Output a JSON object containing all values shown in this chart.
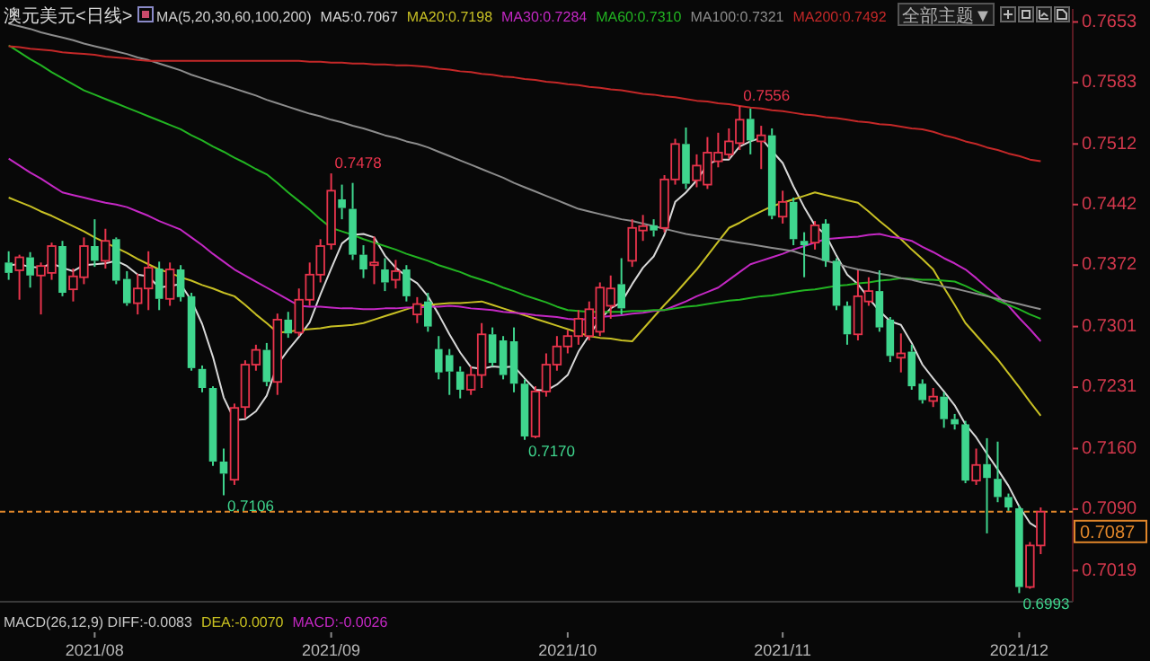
{
  "chart_data": {
    "type": "candlestick",
    "title": "澳元美元<日线>",
    "legend_title": "MA(5,20,30,60,100,200)",
    "legend": "top",
    "categories": [
      null,
      null,
      null,
      null,
      null,
      null,
      null,
      null,
      "2021/08",
      null,
      null,
      null,
      null,
      null,
      null,
      null,
      null,
      null,
      null,
      null,
      null,
      null,
      null,
      null,
      null,
      null,
      null,
      null,
      null,
      null,
      "2021/09",
      null,
      null,
      null,
      null,
      null,
      null,
      null,
      null,
      null,
      null,
      null,
      null,
      null,
      null,
      null,
      null,
      null,
      null,
      null,
      null,
      null,
      "2021/10",
      null,
      null,
      null,
      null,
      null,
      null,
      null,
      null,
      null,
      null,
      null,
      null,
      null,
      null,
      null,
      null,
      null,
      null,
      null,
      "2021/11",
      null,
      null,
      null,
      null,
      null,
      null,
      null,
      null,
      null,
      null,
      null,
      null,
      null,
      null,
      null,
      null,
      null,
      null,
      null,
      null,
      null,
      "2021/12",
      null,
      null
    ],
    "ohlc": [
      [
        0.7375,
        0.7388,
        0.7355,
        0.7363
      ],
      [
        0.7366,
        0.7384,
        0.7332,
        0.7381
      ],
      [
        0.7381,
        0.7387,
        0.7346,
        0.736
      ],
      [
        0.736,
        0.7375,
        0.7315,
        0.7371
      ],
      [
        0.7363,
        0.7398,
        0.7355,
        0.7394
      ],
      [
        0.7394,
        0.74,
        0.7336,
        0.734
      ],
      [
        0.7344,
        0.7368,
        0.733,
        0.7359
      ],
      [
        0.7358,
        0.7404,
        0.735,
        0.7394
      ],
      [
        0.7394,
        0.7425,
        0.737,
        0.7377
      ],
      [
        0.7377,
        0.7414,
        0.7368,
        0.74
      ],
      [
        0.7402,
        0.7404,
        0.735,
        0.7354
      ],
      [
        0.7356,
        0.7365,
        0.7325,
        0.7328
      ],
      [
        0.7328,
        0.7362,
        0.7315,
        0.7345
      ],
      [
        0.7345,
        0.7388,
        0.732,
        0.7369
      ],
      [
        0.7368,
        0.7376,
        0.732,
        0.7333
      ],
      [
        0.7333,
        0.7375,
        0.7325,
        0.7367
      ],
      [
        0.7367,
        0.7372,
        0.733,
        0.7335
      ],
      [
        0.7336,
        0.734,
        0.725,
        0.7253
      ],
      [
        0.7252,
        0.7256,
        0.7225,
        0.723
      ],
      [
        0.723,
        0.7232,
        0.714,
        0.7145
      ],
      [
        0.7145,
        0.716,
        0.7106,
        0.7131
      ],
      [
        0.7124,
        0.7212,
        0.7118,
        0.7207
      ],
      [
        0.7208,
        0.7262,
        0.7195,
        0.7257
      ],
      [
        0.7257,
        0.728,
        0.725,
        0.7274
      ],
      [
        0.7274,
        0.7282,
        0.7232,
        0.7237
      ],
      [
        0.7237,
        0.7316,
        0.7222,
        0.7309
      ],
      [
        0.7309,
        0.7318,
        0.7288,
        0.7293
      ],
      [
        0.7294,
        0.7345,
        0.729,
        0.7332
      ],
      [
        0.7332,
        0.7375,
        0.7325,
        0.7361
      ],
      [
        0.7361,
        0.7402,
        0.7352,
        0.7394
      ],
      [
        0.7396,
        0.7478,
        0.739,
        0.7458
      ],
      [
        0.7448,
        0.7465,
        0.7425,
        0.7438
      ],
      [
        0.7437,
        0.7467,
        0.7378,
        0.7384
      ],
      [
        0.7384,
        0.7395,
        0.7357,
        0.7367
      ],
      [
        0.7372,
        0.7405,
        0.735,
        0.7375
      ],
      [
        0.7367,
        0.738,
        0.7342,
        0.7352
      ],
      [
        0.7355,
        0.7378,
        0.7345,
        0.7365
      ],
      [
        0.7367,
        0.7372,
        0.733,
        0.7336
      ],
      [
        0.7315,
        0.7335,
        0.7305,
        0.7327
      ],
      [
        0.733,
        0.734,
        0.7295,
        0.7301
      ],
      [
        0.7275,
        0.729,
        0.724,
        0.7248
      ],
      [
        0.7268,
        0.7275,
        0.7222,
        0.7249
      ],
      [
        0.7249,
        0.7255,
        0.7218,
        0.7228
      ],
      [
        0.7228,
        0.7255,
        0.7222,
        0.7245
      ],
      [
        0.7245,
        0.7305,
        0.723,
        0.7292
      ],
      [
        0.7292,
        0.73,
        0.7255,
        0.7259
      ],
      [
        0.7285,
        0.729,
        0.724,
        0.7245
      ],
      [
        0.7284,
        0.73,
        0.7225,
        0.7235
      ],
      [
        0.7235,
        0.724,
        0.717,
        0.7174
      ],
      [
        0.7174,
        0.7232,
        0.7172,
        0.7226
      ],
      [
        0.7226,
        0.727,
        0.722,
        0.7257
      ],
      [
        0.7257,
        0.729,
        0.725,
        0.7278
      ],
      [
        0.7278,
        0.7297,
        0.727,
        0.729
      ],
      [
        0.729,
        0.732,
        0.728,
        0.731
      ],
      [
        0.729,
        0.733,
        0.7285,
        0.7321
      ],
      [
        0.7295,
        0.7352,
        0.729,
        0.7346
      ],
      [
        0.7325,
        0.736,
        0.731,
        0.7345
      ],
      [
        0.735,
        0.738,
        0.7315,
        0.7322
      ],
      [
        0.7377,
        0.7425,
        0.737,
        0.7415
      ],
      [
        0.7412,
        0.743,
        0.74,
        0.7417
      ],
      [
        0.7418,
        0.7425,
        0.7405,
        0.7412
      ],
      [
        0.7415,
        0.7476,
        0.741,
        0.7471
      ],
      [
        0.7471,
        0.7518,
        0.7465,
        0.7512
      ],
      [
        0.7512,
        0.7531,
        0.746,
        0.7466
      ],
      [
        0.747,
        0.75,
        0.7462,
        0.7487
      ],
      [
        0.7465,
        0.752,
        0.746,
        0.7502
      ],
      [
        0.7492,
        0.7525,
        0.7485,
        0.7502
      ],
      [
        0.75,
        0.753,
        0.7495,
        0.7515
      ],
      [
        0.7513,
        0.7556,
        0.7505,
        0.754
      ],
      [
        0.7541,
        0.7553,
        0.75,
        0.7516
      ],
      [
        0.7515,
        0.7533,
        0.7483,
        0.7522
      ],
      [
        0.7522,
        0.753,
        0.7425,
        0.7429
      ],
      [
        0.7428,
        0.7458,
        0.742,
        0.7445
      ],
      [
        0.7445,
        0.745,
        0.7395,
        0.7402
      ],
      [
        0.74,
        0.741,
        0.7358,
        0.7395
      ],
      [
        0.7398,
        0.7423,
        0.739,
        0.7418
      ],
      [
        0.742,
        0.7425,
        0.737,
        0.7377
      ],
      [
        0.7377,
        0.738,
        0.732,
        0.7325
      ],
      [
        0.7325,
        0.733,
        0.728,
        0.7292
      ],
      [
        0.7292,
        0.7366,
        0.7285,
        0.7336
      ],
      [
        0.733,
        0.7358,
        0.7325,
        0.7342
      ],
      [
        0.7342,
        0.7366,
        0.7295,
        0.73
      ],
      [
        0.7309,
        0.7312,
        0.726,
        0.7267
      ],
      [
        0.7265,
        0.7293,
        0.7248,
        0.727
      ],
      [
        0.7272,
        0.728,
        0.7228,
        0.7232
      ],
      [
        0.7235,
        0.724,
        0.7212,
        0.7216
      ],
      [
        0.7215,
        0.723,
        0.7208,
        0.722
      ],
      [
        0.722,
        0.7225,
        0.7184,
        0.7194
      ],
      [
        0.7194,
        0.72,
        0.7182,
        0.7188
      ],
      [
        0.7188,
        0.7192,
        0.712,
        0.7123
      ],
      [
        0.7123,
        0.716,
        0.7118,
        0.7141
      ],
      [
        0.7142,
        0.7172,
        0.7062,
        0.7126
      ],
      [
        0.7125,
        0.7168,
        0.7098,
        0.7104
      ],
      [
        0.7104,
        0.7108,
        0.7088,
        0.7092
      ],
      [
        0.7091,
        0.7094,
        0.6993,
        0.7
      ],
      [
        0.7,
        0.7052,
        0.6998,
        0.7048
      ],
      [
        0.7048,
        0.7092,
        0.7038,
        0.7087
      ]
    ],
    "series": [
      {
        "type": "line",
        "name": "MA5:0.7067",
        "color": "#d8d8d8",
        "values": [
          0.7372,
          0.7373,
          0.737,
          0.7369,
          0.7374,
          0.7369,
          0.7365,
          0.7372,
          0.7373,
          0.7374,
          0.7377,
          0.7371,
          0.7361,
          0.7359,
          0.7346,
          0.7348,
          0.735,
          0.7331,
          0.7304,
          0.7266,
          0.7219,
          0.7193,
          0.7194,
          0.7203,
          0.7221,
          0.7257,
          0.7274,
          0.7289,
          0.7306,
          0.7338,
          0.7368,
          0.7397,
          0.7407,
          0.7408,
          0.7404,
          0.7383,
          0.7369,
          0.7359,
          0.7351,
          0.7336,
          0.7315,
          0.7292,
          0.7271,
          0.7254,
          0.7252,
          0.7255,
          0.7254,
          0.7255,
          0.7241,
          0.7228,
          0.7227,
          0.7234,
          0.7245,
          0.7272,
          0.7291,
          0.7309,
          0.7322,
          0.7329,
          0.735,
          0.7369,
          0.7382,
          0.7407,
          0.7445,
          0.7456,
          0.747,
          0.7488,
          0.7494,
          0.7494,
          0.7509,
          0.7515,
          0.7519,
          0.7504,
          0.749,
          0.7463,
          0.7439,
          0.7418,
          0.7407,
          0.7383,
          0.7361,
          0.735,
          0.7334,
          0.7319,
          0.7307,
          0.7303,
          0.7282,
          0.7257,
          0.7241,
          0.7226,
          0.721,
          0.7188,
          0.7173,
          0.7154,
          0.7136,
          0.7117,
          0.7093,
          0.7074,
          0.7066
        ]
      },
      {
        "type": "line",
        "name": "MA20:0.7198",
        "color": "#c8c024",
        "values": [
          0.745,
          0.7445,
          0.744,
          0.7434,
          0.7429,
          0.7423,
          0.7417,
          0.7411,
          0.7404,
          0.7398,
          0.7392,
          0.7386,
          0.7379,
          0.7373,
          0.7367,
          0.7363,
          0.7358,
          0.7354,
          0.7349,
          0.7345,
          0.734,
          0.7336,
          0.7326,
          0.7315,
          0.7305,
          0.7294,
          0.7295,
          0.7297,
          0.7298,
          0.7299,
          0.7301,
          0.7302,
          0.7303,
          0.7305,
          0.7309,
          0.7313,
          0.7317,
          0.7321,
          0.7325,
          0.7326,
          0.7327,
          0.7328,
          0.7328,
          0.7329,
          0.733,
          0.7326,
          0.7322,
          0.7318,
          0.7314,
          0.731,
          0.7306,
          0.7302,
          0.7298,
          0.7294,
          0.729,
          0.7288,
          0.7287,
          0.7285,
          0.7284,
          0.7298,
          0.7312,
          0.7326,
          0.7339,
          0.7353,
          0.7367,
          0.7383,
          0.7399,
          0.7415,
          0.7421,
          0.7428,
          0.7434,
          0.744,
          0.7444,
          0.7448,
          0.7452,
          0.7456,
          0.7453,
          0.745,
          0.7447,
          0.7444,
          0.7434,
          0.7423,
          0.7413,
          0.7402,
          0.739,
          0.7379,
          0.7367,
          0.7346,
          0.7326,
          0.7305,
          0.7291,
          0.7277,
          0.7263,
          0.7247,
          0.7231,
          0.7214,
          0.7198
        ]
      },
      {
        "type": "line",
        "name": "MA30:0.7284",
        "color": "#c428c4",
        "values": [
          0.7495,
          0.7487,
          0.7479,
          0.7472,
          0.7464,
          0.7456,
          0.7453,
          0.745,
          0.7447,
          0.7444,
          0.7442,
          0.7439,
          0.7434,
          0.7429,
          0.7423,
          0.7418,
          0.7413,
          0.7404,
          0.7395,
          0.7385,
          0.7376,
          0.7367,
          0.736,
          0.7353,
          0.7346,
          0.7339,
          0.7332,
          0.7325,
          0.7324,
          0.7324,
          0.7323,
          0.7322,
          0.7322,
          0.7321,
          0.7321,
          0.7322,
          0.7322,
          0.7323,
          0.7323,
          0.7324,
          0.7324,
          0.7325,
          0.7324,
          0.7322,
          0.7321,
          0.732,
          0.7318,
          0.7317,
          0.7316,
          0.7314,
          0.7313,
          0.7312,
          0.731,
          0.7309,
          0.731,
          0.7312,
          0.7313,
          0.7314,
          0.7316,
          0.7317,
          0.7319,
          0.732,
          0.7325,
          0.733,
          0.7336,
          0.7341,
          0.7346,
          0.7355,
          0.7364,
          0.7373,
          0.7377,
          0.7381,
          0.7385,
          0.739,
          0.7394,
          0.7398,
          0.7402,
          0.7403,
          0.7404,
          0.7405,
          0.7407,
          0.7408,
          0.7405,
          0.7403,
          0.74,
          0.7393,
          0.7387,
          0.738,
          0.7374,
          0.7367,
          0.7357,
          0.7346,
          0.7336,
          0.7325,
          0.7311,
          0.7298,
          0.7284
        ]
      },
      {
        "type": "line",
        "name": "MA60:0.7310",
        "color": "#22b422",
        "values": [
          0.7626,
          0.7618,
          0.761,
          0.7603,
          0.7595,
          0.7588,
          0.7581,
          0.7574,
          0.7569,
          0.7564,
          0.7559,
          0.7554,
          0.7549,
          0.7544,
          0.7539,
          0.7534,
          0.7529,
          0.7522,
          0.7516,
          0.7509,
          0.7503,
          0.7496,
          0.749,
          0.7483,
          0.7477,
          0.7467,
          0.7456,
          0.7446,
          0.7436,
          0.7425,
          0.7415,
          0.7411,
          0.7407,
          0.7402,
          0.7398,
          0.7394,
          0.739,
          0.7385,
          0.7381,
          0.7377,
          0.7372,
          0.7368,
          0.7364,
          0.7359,
          0.7355,
          0.7351,
          0.7346,
          0.7342,
          0.7337,
          0.7333,
          0.7329,
          0.7324,
          0.732,
          0.7319,
          0.7318,
          0.7318,
          0.7318,
          0.7318,
          0.7319,
          0.7319,
          0.732,
          0.732,
          0.7322,
          0.7324,
          0.7325,
          0.7327,
          0.7329,
          0.7331,
          0.7332,
          0.7334,
          0.7336,
          0.7337,
          0.7339,
          0.7341,
          0.7343,
          0.7344,
          0.7346,
          0.7348,
          0.7349,
          0.7351,
          0.7352,
          0.7354,
          0.7355,
          0.7357,
          0.7356,
          0.7355,
          0.7355,
          0.7354,
          0.7353,
          0.7348,
          0.7342,
          0.7337,
          0.7331,
          0.7326,
          0.7321,
          0.7315,
          0.731
        ]
      },
      {
        "type": "line",
        "name": "MA100:0.7321",
        "color": "#8c8c8c",
        "values": [
          0.7651,
          0.7648,
          0.7645,
          0.7641,
          0.7638,
          0.7635,
          0.7632,
          0.7628,
          0.7625,
          0.7622,
          0.7619,
          0.7616,
          0.7612,
          0.7609,
          0.7605,
          0.7601,
          0.7597,
          0.7592,
          0.7588,
          0.7584,
          0.758,
          0.7576,
          0.7572,
          0.7568,
          0.7563,
          0.7559,
          0.7555,
          0.7551,
          0.7547,
          0.7544,
          0.754,
          0.7537,
          0.7533,
          0.753,
          0.7526,
          0.7522,
          0.7519,
          0.7515,
          0.7512,
          0.7508,
          0.7503,
          0.7498,
          0.7493,
          0.7488,
          0.7483,
          0.7478,
          0.7473,
          0.7467,
          0.7462,
          0.7457,
          0.7452,
          0.7447,
          0.7442,
          0.7437,
          0.7434,
          0.7431,
          0.7428,
          0.7425,
          0.7423,
          0.742,
          0.7417,
          0.7414,
          0.7411,
          0.7408,
          0.7406,
          0.7404,
          0.7402,
          0.74,
          0.7398,
          0.7396,
          0.7394,
          0.7392,
          0.739,
          0.7388,
          0.7384,
          0.7381,
          0.7377,
          0.7374,
          0.737,
          0.7367,
          0.7365,
          0.7362,
          0.736,
          0.7357,
          0.7355,
          0.7352,
          0.735,
          0.7347,
          0.7345,
          0.7342,
          0.7339,
          0.7336,
          0.7333,
          0.733,
          0.7327,
          0.7324,
          0.7321
        ]
      },
      {
        "type": "line",
        "name": "MA200:0.7492",
        "color": "#c42828",
        "values": [
          0.7625,
          0.7624,
          0.7622,
          0.7621,
          0.762,
          0.7618,
          0.7617,
          0.7616,
          0.7615,
          0.7613,
          0.7612,
          0.7611,
          0.7609,
          0.7608,
          0.7608,
          0.7608,
          0.7608,
          0.7608,
          0.7608,
          0.7608,
          0.7608,
          0.7608,
          0.7608,
          0.7608,
          0.7608,
          0.7608,
          0.7608,
          0.7608,
          0.7607,
          0.7607,
          0.7606,
          0.7606,
          0.7605,
          0.7605,
          0.7604,
          0.7604,
          0.7603,
          0.7603,
          0.7602,
          0.7601,
          0.7599,
          0.7598,
          0.7596,
          0.7595,
          0.7593,
          0.7592,
          0.759,
          0.7589,
          0.7587,
          0.7586,
          0.7584,
          0.7583,
          0.7581,
          0.758,
          0.7578,
          0.7577,
          0.7575,
          0.7574,
          0.7572,
          0.757,
          0.7569,
          0.7567,
          0.7566,
          0.7564,
          0.7562,
          0.7561,
          0.7559,
          0.7558,
          0.7556,
          0.7554,
          0.7553,
          0.7551,
          0.755,
          0.7548,
          0.7546,
          0.7545,
          0.7543,
          0.7542,
          0.754,
          0.7538,
          0.7537,
          0.7535,
          0.7534,
          0.7532,
          0.753,
          0.7529,
          0.7526,
          0.7522,
          0.7519,
          0.7515,
          0.7512,
          0.7508,
          0.7505,
          0.7501,
          0.7498,
          0.7494,
          0.7492
        ]
      }
    ],
    "ylim": [
      0.6983,
      0.7668
    ],
    "yticks": [
      0.7653,
      0.7583,
      0.7512,
      0.7442,
      0.7372,
      0.7301,
      0.7231,
      {
        "value": 0.716,
        "label": "0.7160"
      },
      {
        "value": 0.709,
        "label": "0.7090"
      },
      0.7019
    ],
    "ref_lines": [
      {
        "axis": "y",
        "value": 0.7087,
        "label": "0.7087",
        "color": "#e0862a",
        "line_style": "dashed"
      }
    ],
    "annotations": [
      "0.7106",
      "0.7478",
      "0.7170",
      "0.7556",
      "0.6993",
      "MACD(26,12,9) DIFF:-0.0083",
      "DEA:-0.0070",
      "MACD:-0.0026",
      "全部主题▼"
    ]
  }
}
